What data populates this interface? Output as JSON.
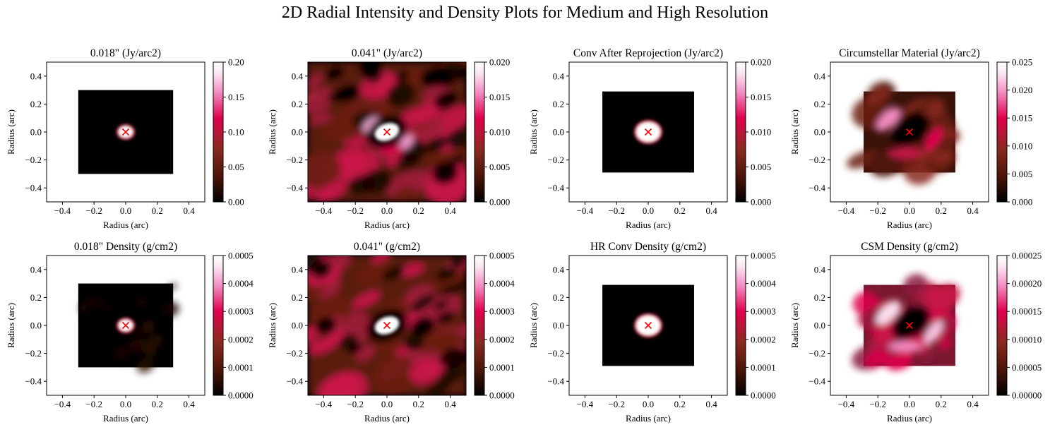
{
  "figure": {
    "title": "2D Radial Intensity and Density Plots for Medium and High Resolution"
  },
  "colors": {
    "cmap": [
      "#000000",
      "#4a1408",
      "#8a2a1e",
      "#e0004e",
      "#f28ac0",
      "#fae6f3",
      "#ffffff"
    ],
    "marker": "#ff0000",
    "axes": "#000000",
    "background": "#ffffff"
  },
  "chart_data": [
    {
      "type": "heatmap",
      "title": "0.018\" (Jy/arc2)",
      "xlabel": "Radius (arc)",
      "ylabel": "Radius (arc)",
      "xlim": [
        -0.5,
        0.5
      ],
      "ylim": [
        -0.5,
        0.5
      ],
      "xticks": [
        "−0.4",
        "−0.2",
        "0.0",
        "0.2",
        "0.4"
      ],
      "yticks": [
        "−0.4",
        "−0.2",
        "0.0",
        "0.2",
        "0.4"
      ],
      "colorbar": {
        "range": [
          0,
          0.2
        ],
        "ticks": [
          "0.00",
          "0.05",
          "0.10",
          "0.15",
          "0.20"
        ]
      },
      "data_extent": [
        -0.3,
        0.3,
        -0.3,
        0.3
      ],
      "pattern": "center",
      "center_marker": [
        0,
        0
      ],
      "grid": false
    },
    {
      "type": "heatmap",
      "title": "0.041\" (Jy/arc2)",
      "xlabel": "Radius (arc)",
      "ylabel": "Radius (arc)",
      "xlim": [
        -0.5,
        0.5
      ],
      "ylim": [
        -0.5,
        0.5
      ],
      "xticks": [
        "−0.4",
        "−0.2",
        "0.0",
        "0.2",
        "0.4"
      ],
      "yticks": [
        "−0.4",
        "−0.2",
        "0.0",
        "0.2",
        "0.4"
      ],
      "colorbar": {
        "range": [
          0,
          0.02
        ],
        "ticks": [
          "0.000",
          "0.005",
          "0.010",
          "0.015",
          "0.020"
        ]
      },
      "data_extent": [
        -0.5,
        0.5,
        -0.5,
        0.5
      ],
      "pattern": "ring-noise",
      "center_marker": [
        0,
        0
      ],
      "grid": false
    },
    {
      "type": "heatmap",
      "title": "Conv After Reprojection (Jy/arc2)",
      "xlabel": "Radius (arc)",
      "ylabel": "Radius (arc)",
      "xlim": [
        -0.5,
        0.5
      ],
      "ylim": [
        -0.5,
        0.5
      ],
      "xticks": [
        "−0.4",
        "−0.2",
        "0.0",
        "0.2",
        "0.4"
      ],
      "yticks": [
        "−0.4",
        "−0.2",
        "0.0",
        "0.2",
        "0.4"
      ],
      "colorbar": {
        "range": [
          0,
          0.02
        ],
        "ticks": [
          "0.000",
          "0.005",
          "0.010",
          "0.015",
          "0.020"
        ]
      },
      "data_extent": [
        -0.29,
        0.29,
        -0.29,
        0.29
      ],
      "pattern": "center-large",
      "center_marker": [
        0,
        0
      ],
      "grid": false
    },
    {
      "type": "heatmap",
      "title": "Circumstellar Material (Jy/arc2)",
      "xlabel": "Radius (arc)",
      "ylabel": "Radius (arc)",
      "xlim": [
        -0.5,
        0.5
      ],
      "ylim": [
        -0.5,
        0.5
      ],
      "xticks": [
        "−0.4",
        "−0.2",
        "0.0",
        "0.2",
        "0.4"
      ],
      "yticks": [
        "−0.4",
        "−0.2",
        "0.0",
        "0.2",
        "0.4"
      ],
      "colorbar": {
        "range": [
          0,
          0.025
        ],
        "ticks": [
          "0.000",
          "0.005",
          "0.010",
          "0.015",
          "0.020",
          "0.025"
        ]
      },
      "data_extent": [
        -0.29,
        0.29,
        -0.29,
        0.29
      ],
      "pattern": "csm",
      "center_marker": [
        0,
        0
      ],
      "grid": false
    },
    {
      "type": "heatmap",
      "title": "0.018\" Density (g/cm2)",
      "xlabel": "Radius (arc)",
      "ylabel": "Radius (arc)",
      "xlim": [
        -0.5,
        0.5
      ],
      "ylim": [
        -0.5,
        0.5
      ],
      "xticks": [
        "−0.4",
        "−0.2",
        "0.0",
        "0.2",
        "0.4"
      ],
      "yticks": [
        "−0.4",
        "−0.2",
        "0.0",
        "0.2",
        "0.4"
      ],
      "colorbar": {
        "range": [
          0,
          0.0005
        ],
        "ticks": [
          "0.0000",
          "0.0001",
          "0.0002",
          "0.0003",
          "0.0004",
          "0.0005"
        ]
      },
      "data_extent": [
        -0.3,
        0.3,
        -0.3,
        0.3
      ],
      "pattern": "center-faint",
      "center_marker": [
        0,
        0
      ],
      "grid": false
    },
    {
      "type": "heatmap",
      "title": "0.041\" (g/cm2)",
      "xlabel": "Radius (arc)",
      "ylabel": "Radius (arc)",
      "xlim": [
        -0.5,
        0.5
      ],
      "ylim": [
        -0.5,
        0.5
      ],
      "xticks": [
        "−0.4",
        "−0.2",
        "0.0",
        "0.2",
        "0.4"
      ],
      "yticks": [
        "−0.4",
        "−0.2",
        "0.0",
        "0.2",
        "0.4"
      ],
      "colorbar": {
        "range": [
          0,
          0.0005
        ],
        "ticks": [
          "0.0000",
          "0.0001",
          "0.0002",
          "0.0003",
          "0.0004",
          "0.0005"
        ]
      },
      "data_extent": [
        -0.5,
        0.5,
        -0.5,
        0.5
      ],
      "pattern": "noise-dark",
      "center_marker": [
        0,
        0
      ],
      "grid": false
    },
    {
      "type": "heatmap",
      "title": "HR Conv Density (g/cm2)",
      "xlabel": "Radius (arc)",
      "ylabel": "Radius (arc)",
      "xlim": [
        -0.5,
        0.5
      ],
      "ylim": [
        -0.5,
        0.5
      ],
      "xticks": [
        "−0.4",
        "−0.2",
        "0.0",
        "0.2",
        "0.4"
      ],
      "yticks": [
        "−0.4",
        "−0.2",
        "0.0",
        "0.2",
        "0.4"
      ],
      "colorbar": {
        "range": [
          0,
          0.0005
        ],
        "ticks": [
          "0.0000",
          "0.0001",
          "0.0002",
          "0.0003",
          "0.0004",
          "0.0005"
        ]
      },
      "data_extent": [
        -0.29,
        0.29,
        -0.29,
        0.29
      ],
      "pattern": "center-large",
      "center_marker": [
        0,
        0
      ],
      "grid": false
    },
    {
      "type": "heatmap",
      "title": "CSM Density (g/cm2)",
      "xlabel": "Radius (arc)",
      "ylabel": "Radius (arc)",
      "xlim": [
        -0.5,
        0.5
      ],
      "ylim": [
        -0.5,
        0.5
      ],
      "xticks": [
        "−0.4",
        "−0.2",
        "0.0",
        "0.2",
        "0.4"
      ],
      "yticks": [
        "−0.4",
        "−0.2",
        "0.0",
        "0.2",
        "0.4"
      ],
      "colorbar": {
        "range": [
          0,
          0.00025
        ],
        "ticks": [
          "0.00000",
          "0.00005",
          "0.00010",
          "0.00015",
          "0.00020",
          "0.00025"
        ]
      },
      "data_extent": [
        -0.29,
        0.29,
        -0.29,
        0.29
      ],
      "pattern": "csm-bright",
      "center_marker": [
        0,
        0
      ],
      "grid": false
    }
  ]
}
